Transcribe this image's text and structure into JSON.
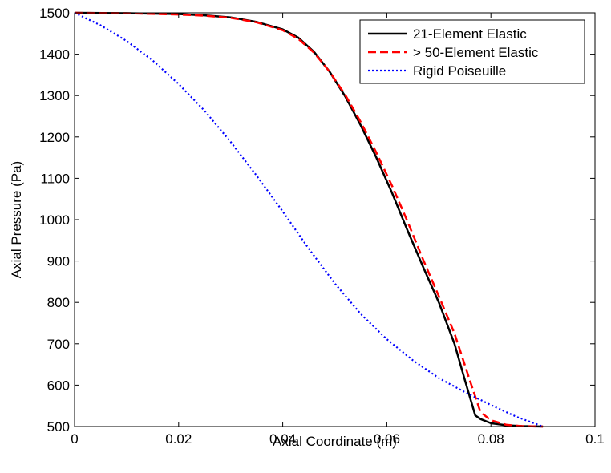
{
  "chart_data": {
    "type": "line",
    "title": "",
    "xlabel": "Axial Coordinate (m)",
    "ylabel": "Axial Pressure (Pa)",
    "xlim": [
      0,
      0.1
    ],
    "ylim": [
      500,
      1500
    ],
    "xticks": [
      0,
      0.02,
      0.04,
      0.06,
      0.08,
      0.1
    ],
    "xtick_labels": [
      "0",
      "0.02",
      "0.04",
      "0.06",
      "0.08",
      "0.1"
    ],
    "yticks": [
      500,
      600,
      700,
      800,
      900,
      1000,
      1100,
      1200,
      1300,
      1400,
      1500
    ],
    "ytick_labels": [
      "500",
      "600",
      "700",
      "800",
      "900",
      "1000",
      "1100",
      "1200",
      "1300",
      "1400",
      "1500"
    ],
    "grid": false,
    "legend_position": "top-right",
    "series": [
      {
        "name": "21-Element Elastic",
        "color": "#000000",
        "style": "solid",
        "x": [
          0,
          0.01,
          0.02,
          0.025,
          0.03,
          0.035,
          0.04,
          0.043,
          0.046,
          0.049,
          0.052,
          0.055,
          0.058,
          0.061,
          0.064,
          0.067,
          0.07,
          0.073,
          0.075,
          0.077,
          0.078,
          0.08,
          0.083,
          0.086,
          0.09
        ],
        "y": [
          1500,
          1499,
          1497,
          1494,
          1489,
          1478,
          1460,
          1440,
          1406,
          1358,
          1298,
          1228,
          1150,
          1065,
          973,
          885,
          800,
          700,
          612,
          527,
          518,
          508,
          503,
          501,
          500
        ]
      },
      {
        "name": "> 50-Element Elastic",
        "color": "#ff0000",
        "style": "dashed",
        "x": [
          0,
          0.01,
          0.02,
          0.025,
          0.03,
          0.035,
          0.04,
          0.043,
          0.046,
          0.049,
          0.052,
          0.055,
          0.058,
          0.061,
          0.064,
          0.067,
          0.07,
          0.073,
          0.076,
          0.078,
          0.08,
          0.083,
          0.086,
          0.09
        ],
        "y": [
          1500,
          1499,
          1496,
          1493,
          1488,
          1477,
          1458,
          1437,
          1404,
          1358,
          1302,
          1236,
          1162,
          1082,
          995,
          903,
          815,
          725,
          610,
          535,
          515,
          504,
          501,
          500
        ]
      },
      {
        "name": "Rigid Poiseuille",
        "color": "#0000ff",
        "style": "dotted",
        "x": [
          0,
          0.005,
          0.01,
          0.015,
          0.02,
          0.025,
          0.03,
          0.035,
          0.04,
          0.045,
          0.05,
          0.055,
          0.06,
          0.065,
          0.07,
          0.075,
          0.08,
          0.085,
          0.09
        ],
        "y": [
          1500,
          1470,
          1432,
          1385,
          1328,
          1263,
          1188,
          1106,
          1020,
          930,
          846,
          772,
          711,
          660,
          617,
          583,
          552,
          523,
          500
        ]
      }
    ]
  }
}
